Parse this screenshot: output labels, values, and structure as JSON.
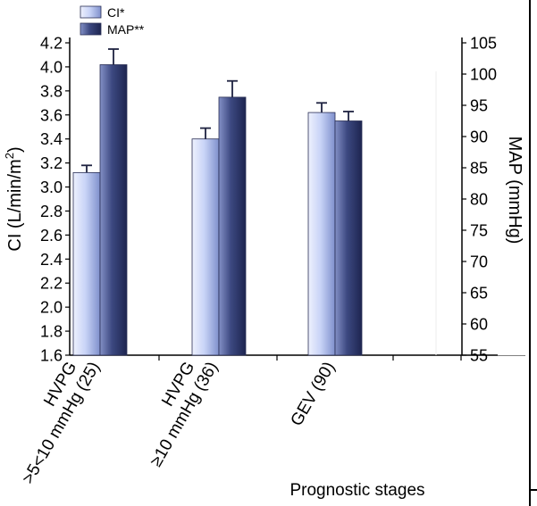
{
  "chart_data": {
    "type": "bar",
    "xlabel": "Prognostic stages",
    "categories": [
      [
        "HVPG",
        ">5<10 mmHg (25)"
      ],
      [
        "HVPG",
        "≥10 mmHg (36)"
      ],
      [
        "GEV (90)"
      ]
    ],
    "left_axis": {
      "label_main": "CI (L/min/m",
      "label_sup": "2",
      "label_end": ")",
      "ylim": [
        1.6,
        4.2
      ],
      "ticks": [
        "1.6",
        "1.8",
        "2.0",
        "2.2",
        "2.4",
        "2.6",
        "2.8",
        "3.0",
        "3.2",
        "3.4",
        "3.6",
        "3.8",
        "4.0",
        "4.2"
      ]
    },
    "right_axis": {
      "label": "MAP (mmHg)",
      "ylim": [
        55,
        105
      ],
      "ticks": [
        "55",
        "60",
        "65",
        "70",
        "75",
        "80",
        "85",
        "90",
        "95",
        "100",
        "105"
      ]
    },
    "series": [
      {
        "name": "CI*",
        "axis": "left",
        "values": [
          3.12,
          3.4,
          3.62
        ],
        "error": [
          0.06,
          0.09,
          0.08
        ],
        "color": "#c6d2f6"
      },
      {
        "name": "MAP**",
        "axis": "right",
        "values": [
          101.5,
          96.3,
          92.5
        ],
        "error": [
          2.5,
          2.6,
          1.5
        ],
        "color": "#3f4b85"
      }
    ],
    "legend": {
      "position": "top-left"
    },
    "grid": false
  }
}
